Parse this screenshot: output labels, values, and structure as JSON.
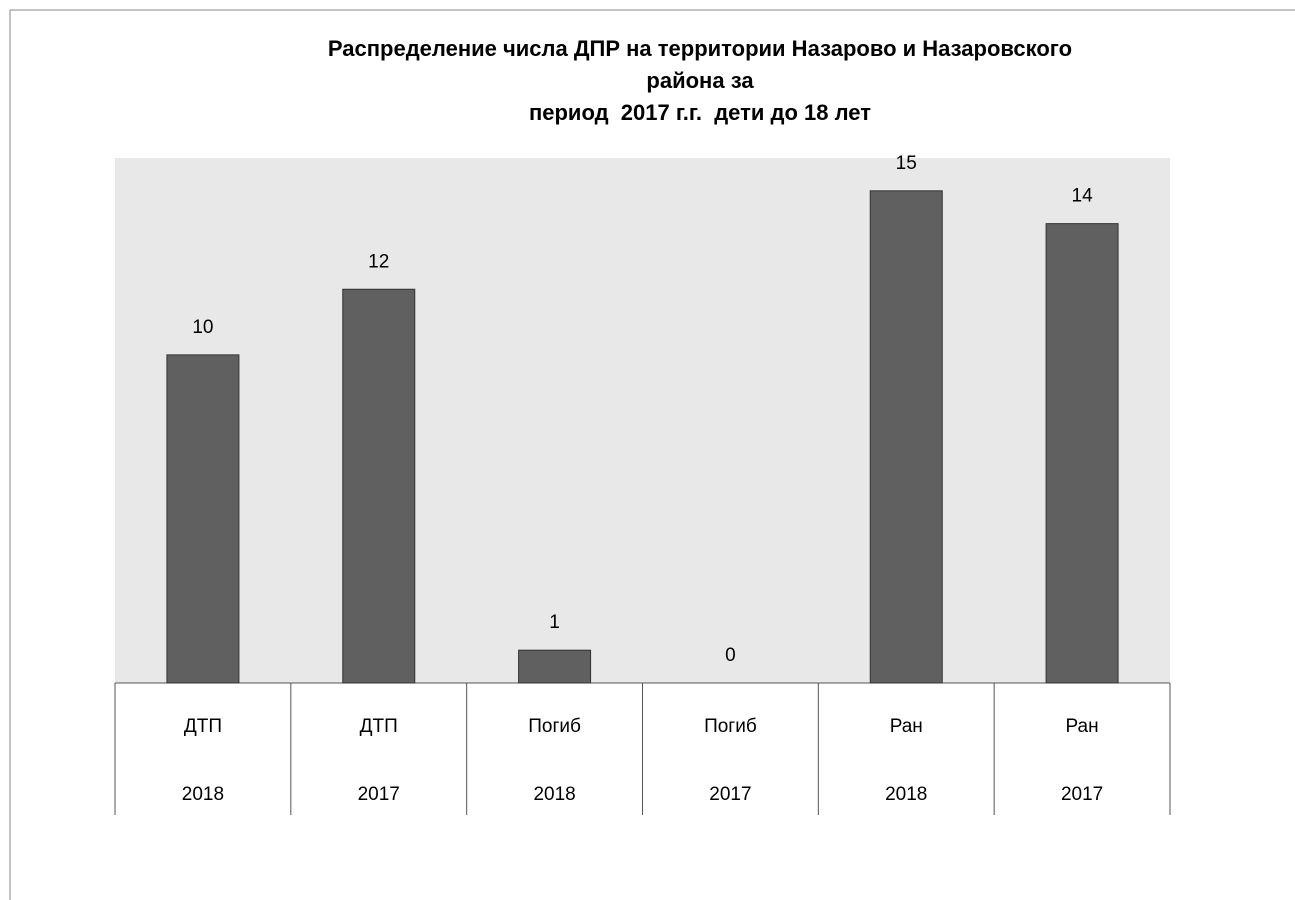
{
  "chart_data": {
    "type": "bar",
    "title": [
      "Распределение числа ДПР на территории Назарово и Назаровского",
      "района за",
      "период  2017 г.г.  дети до 18 лет"
    ],
    "categories": [
      [
        "ДТП",
        "2018"
      ],
      [
        "ДТП",
        "2017"
      ],
      [
        "Погиб",
        "2018"
      ],
      [
        "Погиб",
        "2017"
      ],
      [
        "Ран",
        "2018"
      ],
      [
        "Ран",
        "2017"
      ]
    ],
    "values": [
      10,
      12,
      1,
      0,
      15,
      14
    ],
    "color": "#606060",
    "ylim": [
      0,
      16
    ]
  }
}
